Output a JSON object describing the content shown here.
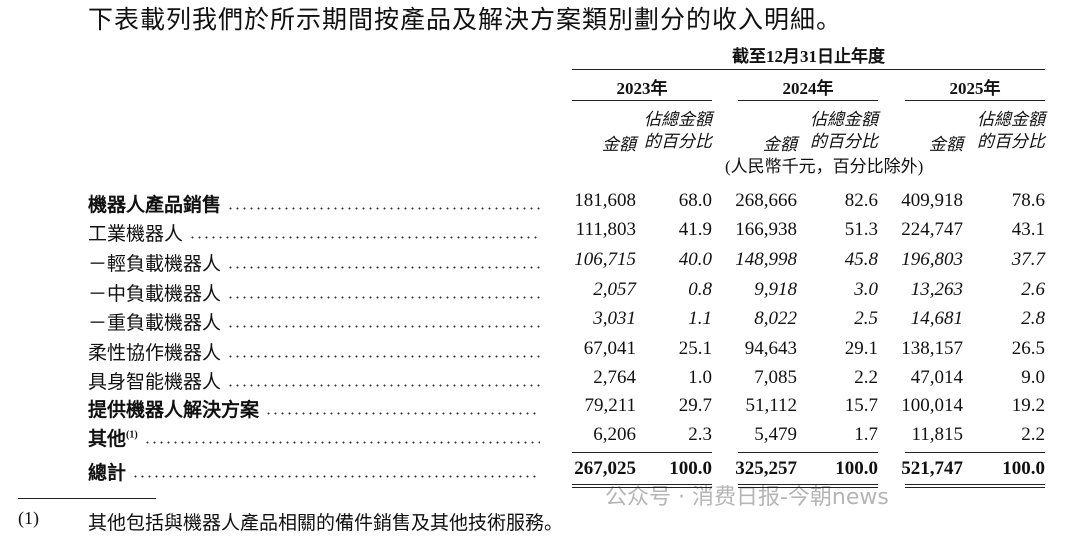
{
  "intro": "下表載列我們於所示期間按產品及解決方案類別劃分的收入明細。",
  "table": {
    "period_header": "截至12月31日止年度",
    "years": [
      "2023年",
      "2024年",
      "2025年"
    ],
    "amount_header": "金額",
    "percent_header": [
      "佔總金額",
      "的百分比"
    ],
    "unit_note": "(人民幣千元，百分比除外)",
    "rows": [
      {
        "label": "機器人產品銷售",
        "style": "bold",
        "cells": [
          "181,608",
          "68.0",
          "268,666",
          "82.6",
          "409,918",
          "78.6"
        ]
      },
      {
        "label": "工業機器人",
        "style": "normal",
        "cells": [
          "111,803",
          "41.9",
          "166,938",
          "51.3",
          "224,747",
          "43.1"
        ]
      },
      {
        "label": "－輕負載機器人",
        "style": "italic",
        "cells": [
          "106,715",
          "40.0",
          "148,998",
          "45.8",
          "196,803",
          "37.7"
        ]
      },
      {
        "label": "－中負載機器人",
        "style": "italic",
        "cells": [
          "2,057",
          "0.8",
          "9,918",
          "3.0",
          "13,263",
          "2.6"
        ]
      },
      {
        "label": "－重負載機器人",
        "style": "italic",
        "cells": [
          "3,031",
          "1.1",
          "8,022",
          "2.5",
          "14,681",
          "2.8"
        ]
      },
      {
        "label": "柔性協作機器人",
        "style": "normal",
        "cells": [
          "67,041",
          "25.1",
          "94,643",
          "29.1",
          "138,157",
          "26.5"
        ]
      },
      {
        "label": "具身智能機器人",
        "style": "normal",
        "cells": [
          "2,764",
          "1.0",
          "7,085",
          "2.2",
          "47,014",
          "9.0"
        ]
      },
      {
        "label": "提供機器人解決方案",
        "style": "bold",
        "cells": [
          "79,211",
          "29.7",
          "51,112",
          "15.7",
          "100,014",
          "19.2"
        ]
      },
      {
        "label": "其他",
        "note": "(1)",
        "style": "bold",
        "cells": [
          "6,206",
          "2.3",
          "5,479",
          "1.7",
          "11,815",
          "2.2"
        ]
      },
      {
        "label": "總計",
        "style": "total",
        "cells": [
          "267,025",
          "100.0",
          "325,257",
          "100.0",
          "521,747",
          "100.0"
        ]
      }
    ]
  },
  "footnote": {
    "marker": "(1)",
    "text": "其他包括與機器人產品相關的備件銷售及其他技術服務。"
  },
  "watermark": "公众号 · 消费日报-今朝news"
}
